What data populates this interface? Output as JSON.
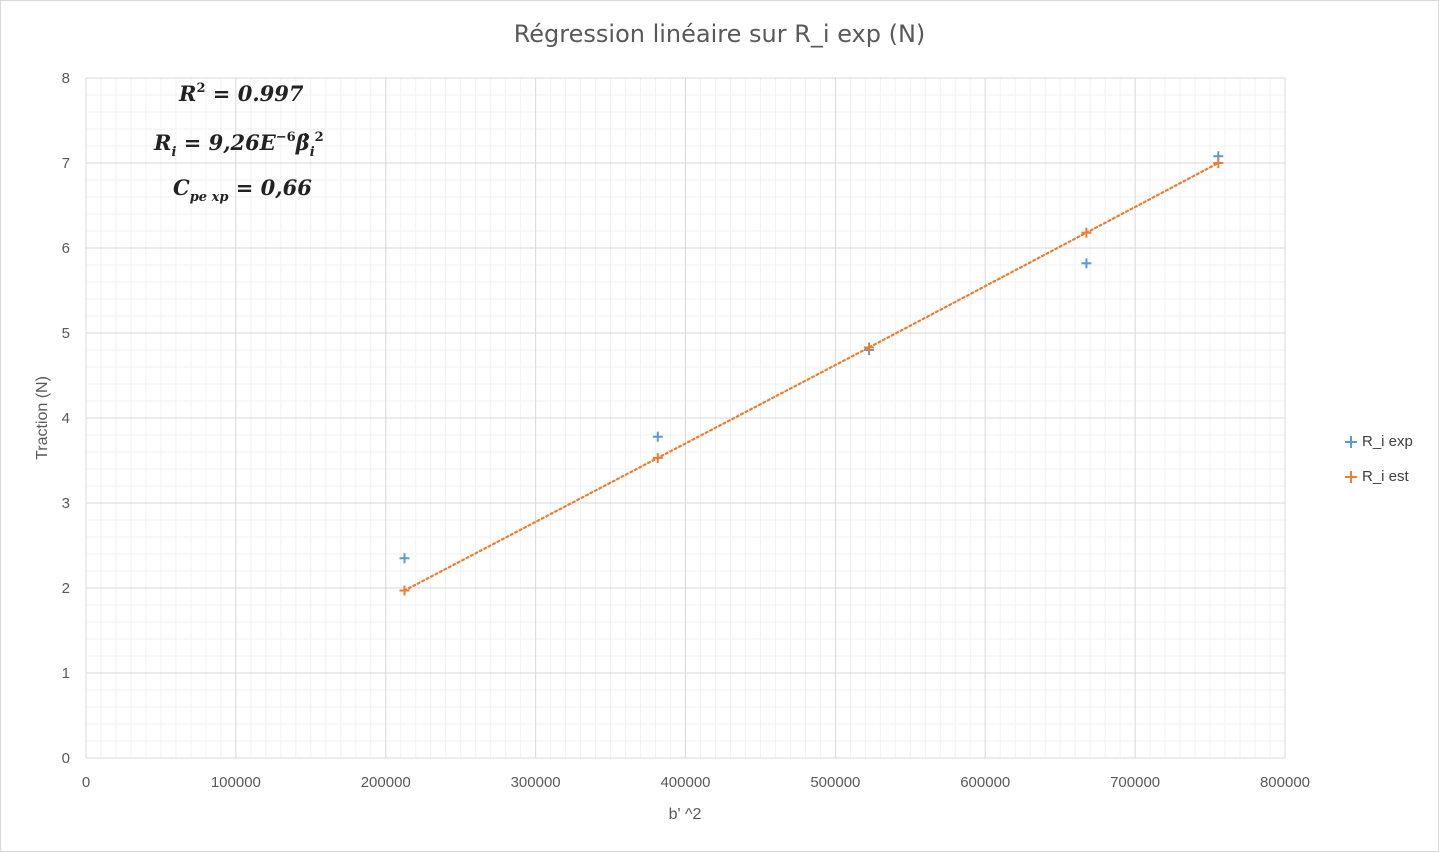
{
  "chart_data": {
    "type": "scatter",
    "title": "Régression linéaire sur R_i exp (N)",
    "xlabel": "b' ^2",
    "ylabel": "Traction (N)",
    "xlim": [
      0,
      800000
    ],
    "ylim": [
      0,
      8
    ],
    "x_ticks": [
      "0",
      "100000",
      "200000",
      "300000",
      "400000",
      "500000",
      "600000",
      "700000",
      "800000"
    ],
    "y_ticks": [
      "0",
      "1",
      "2",
      "3",
      "4",
      "5",
      "6",
      "7",
      "8"
    ],
    "grid": true,
    "legend_position": "right",
    "series": [
      {
        "name": "R_i exp",
        "color": "#5b9bd5",
        "marker": "plus",
        "points": [
          [
            212500,
            2.35
          ],
          [
            381500,
            3.78
          ],
          [
            522500,
            4.8
          ],
          [
            667500,
            5.82
          ],
          [
            755500,
            7.08
          ]
        ]
      },
      {
        "name": "R_i est",
        "color": "#ed7d31",
        "marker": "plus",
        "trendline": "linear-dotted",
        "points": [
          [
            212500,
            1.97
          ],
          [
            381500,
            3.53
          ],
          [
            522500,
            4.83
          ],
          [
            667500,
            6.18
          ],
          [
            755500,
            7.0
          ]
        ]
      }
    ],
    "annotations": {
      "r2": {
        "lhs": "R",
        "sup": "2",
        "rhs": " = 0.997"
      },
      "model": {
        "lhs": "R",
        "sub": "i",
        "mid": " = 9,26E",
        "sup": "−6",
        "beta": "β̇",
        "beta_sub": "i",
        "beta_sup": "2"
      },
      "cp": {
        "lhs": "C",
        "sub": "pe xp",
        "rhs": "  = 0,66"
      }
    }
  }
}
